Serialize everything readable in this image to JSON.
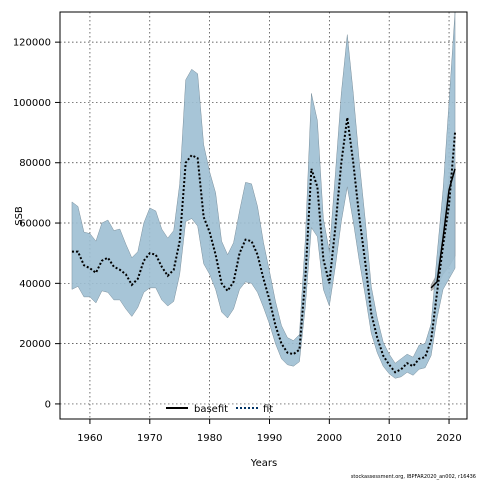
{
  "chart_data": {
    "type": "line",
    "title": "",
    "xlabel": "Years",
    "ylabel": "SSB",
    "xlim": [
      1955,
      2023
    ],
    "ylim": [
      -5000,
      130000
    ],
    "x_ticks": [
      1960,
      1970,
      1980,
      1990,
      2000,
      2010,
      2020
    ],
    "y_ticks": [
      0,
      20000,
      40000,
      60000,
      80000,
      100000,
      120000
    ],
    "grid": true,
    "legend": {
      "position": "bottom-center",
      "entries": [
        "basefit",
        "fit"
      ]
    },
    "source": "stockassessment.org, IBPFAR2020_an002, r16436",
    "colors": {
      "fit_band": "#9dbfd3",
      "base_band": "#a8a8a8",
      "fit_line": "#003366",
      "base_line": "#000000"
    },
    "years": [
      1957,
      1958,
      1959,
      1960,
      1961,
      1962,
      1963,
      1964,
      1965,
      1966,
      1967,
      1968,
      1969,
      1970,
      1971,
      1972,
      1973,
      1974,
      1975,
      1976,
      1977,
      1978,
      1979,
      1980,
      1981,
      1982,
      1983,
      1984,
      1985,
      1986,
      1987,
      1988,
      1989,
      1990,
      1991,
      1992,
      1993,
      1994,
      1995,
      1996,
      1997,
      1998,
      1999,
      2000,
      2001,
      2002,
      2003,
      2004,
      2005,
      2006,
      2007,
      2008,
      2009,
      2010,
      2011,
      2012,
      2013,
      2014,
      2015,
      2016,
      2017,
      2018,
      2019,
      2020,
      2021
    ],
    "series": [
      {
        "name": "fit",
        "values": [
          50500,
          50500,
          46000,
          45000,
          43500,
          47500,
          48500,
          45500,
          44500,
          43000,
          39500,
          41500,
          47500,
          50000,
          49500,
          45500,
          42500,
          44500,
          54000,
          80000,
          82500,
          81500,
          62000,
          57000,
          49500,
          40000,
          37500,
          40500,
          50000,
          54500,
          54000,
          49500,
          41500,
          34500,
          26000,
          20000,
          17000,
          16500,
          18000,
          42000,
          78000,
          72000,
          48000,
          40000,
          58500,
          80000,
          95000,
          80000,
          62000,
          47000,
          30000,
          22000,
          16000,
          13000,
          10500,
          11500,
          13500,
          12500,
          15000,
          15500,
          21000,
          37000,
          52500,
          66000,
          90000
        ],
        "lower": [
          38000,
          39000,
          35500,
          35500,
          33500,
          37500,
          37000,
          34500,
          34500,
          31500,
          29000,
          32000,
          37000,
          38500,
          38500,
          34500,
          32500,
          34000,
          43000,
          60500,
          61500,
          59000,
          46500,
          43000,
          38000,
          30500,
          28500,
          31500,
          38000,
          40500,
          40000,
          37000,
          32000,
          26500,
          20000,
          15000,
          13000,
          12500,
          14000,
          32500,
          58500,
          55500,
          38000,
          32500,
          45500,
          60500,
          72000,
          60500,
          47500,
          36000,
          23500,
          17000,
          12500,
          10000,
          8500,
          9000,
          10500,
          9500,
          11500,
          12000,
          16000,
          28500,
          38000,
          41500,
          45000
        ],
        "upper": [
          67000,
          65500,
          57000,
          56500,
          54000,
          60000,
          61000,
          57500,
          58000,
          53000,
          48500,
          50500,
          60000,
          65000,
          64000,
          58000,
          55000,
          57500,
          73000,
          107500,
          111000,
          109500,
          86000,
          77000,
          70000,
          54000,
          49500,
          53500,
          64000,
          73500,
          73000,
          65500,
          53500,
          44000,
          34000,
          26000,
          22000,
          21000,
          23000,
          55000,
          103000,
          94000,
          61500,
          50500,
          76000,
          103000,
          122500,
          103000,
          80500,
          61000,
          39000,
          28500,
          20500,
          16500,
          13500,
          15000,
          16500,
          15500,
          19500,
          20000,
          26500,
          49500,
          71000,
          100000,
          130000
        ]
      },
      {
        "name": "basefit",
        "values": [
          38500,
          40500,
          55000,
          71000,
          78000
        ],
        "lower": [
          37500,
          39000,
          43000,
          45500,
          49000
        ],
        "upper": [
          39500,
          43000,
          62000,
          75000,
          80000
        ],
        "years": [
          2017,
          2018,
          2019,
          2020,
          2021
        ]
      }
    ]
  }
}
